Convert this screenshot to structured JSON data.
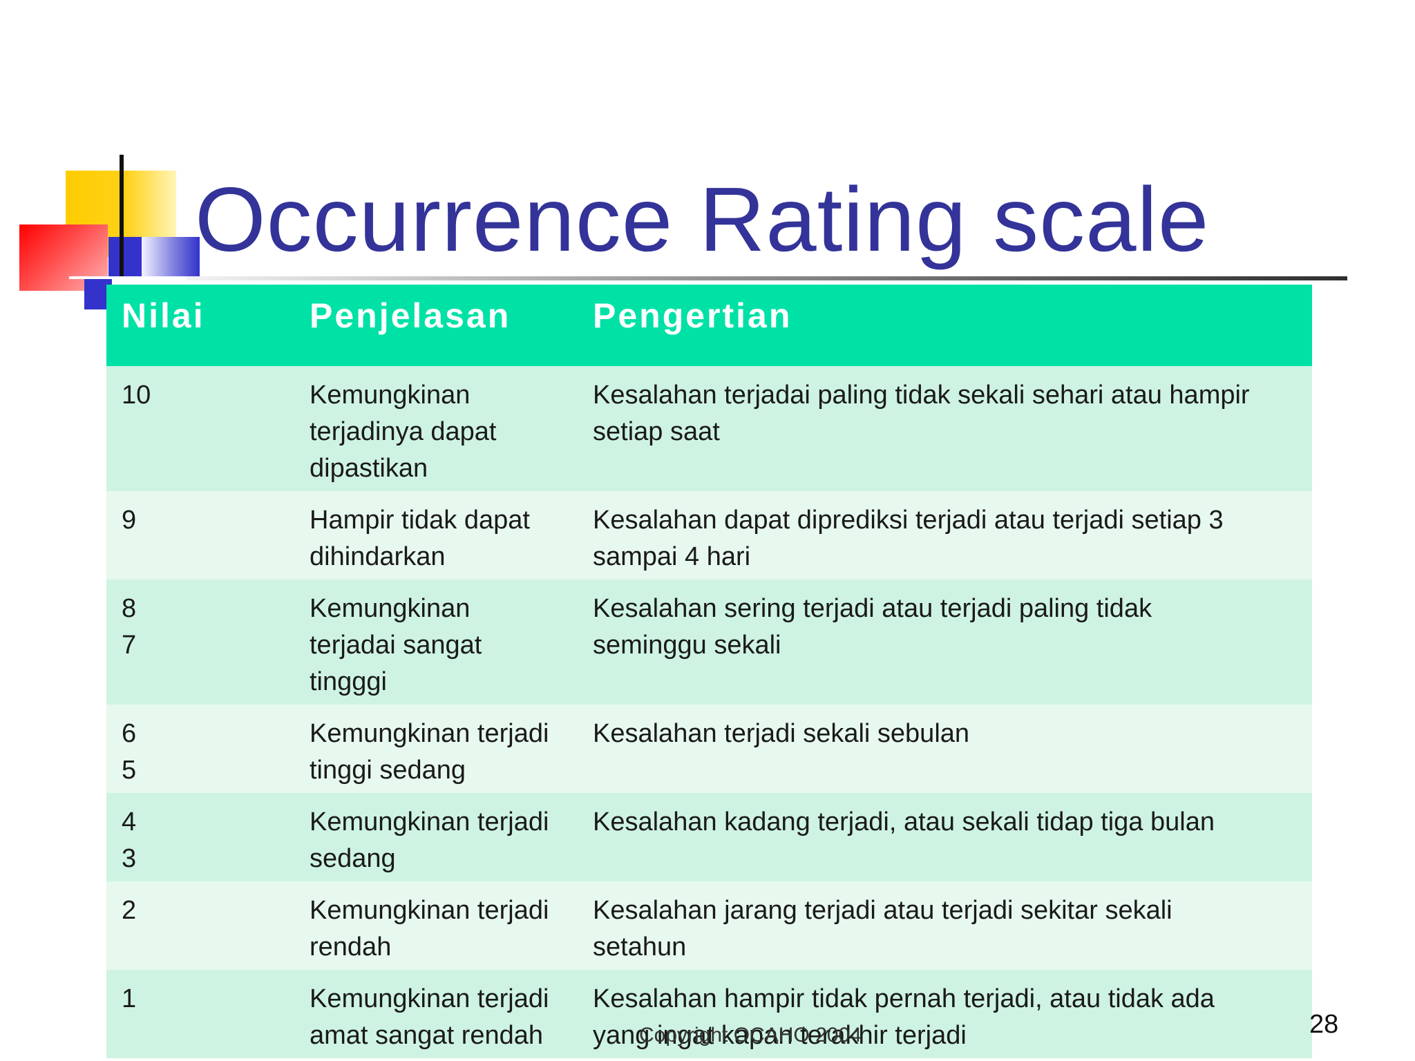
{
  "slide": {
    "title": "Occurrence Rating scale",
    "page_number": "28",
    "copyright": "Copyright OCAHO 2004"
  },
  "table": {
    "headers": [
      "Nilai",
      "Penjelasan",
      "Pengertian"
    ],
    "rows": [
      {
        "nilai": "10",
        "penjelasan": "Kemungkinan\nterjadinya dapat\ndipastikan",
        "pengertian": "Kesalahan  terjadai paling tidak sekali sehari atau hampir\nsetiap saat"
      },
      {
        "nilai": "9",
        "penjelasan": "Hampir tidak dapat\ndihindarkan",
        "pengertian": "Kesalahan dapat diprediksi terjadi atau terjadi setiap 3\nsampai 4 hari"
      },
      {
        "nilai": "8\n7",
        "penjelasan": "Kemungkinan\nterjadai sangat\ntingggi",
        "pengertian": "Kesalahan sering terjadi atau terjadi paling tidak\nseminggu sekali"
      },
      {
        "nilai": "6\n5",
        "penjelasan": "Kemungkinan terjadi\n tinggi sedang",
        "pengertian": "Kesalahan terjadi sekali sebulan"
      },
      {
        "nilai": "4\n3",
        "penjelasan": "Kemungkinan terjadi\nsedang",
        "pengertian": "Kesalahan kadang terjadi, atau sekali tidap tiga bulan"
      },
      {
        "nilai": "2",
        "penjelasan": "Kemungkinan terjadi\nrendah",
        "pengertian": "Kesalahan jarang terjadi atau terjadi sekitar sekali\nsetahun"
      },
      {
        "nilai": "1",
        "penjelasan": "Kemungkinan terjadi\namat sangat rendah",
        "pengertian": "Kesalahan hampir tidak pernah terjadi, atau tidak ada\nyang ingat kapan terakhir terjadi"
      }
    ]
  },
  "colors": {
    "title": "#333399",
    "header_bg": "#00e1a6",
    "row_odd": "#cef3e3",
    "row_even": "#e7f8ef"
  }
}
